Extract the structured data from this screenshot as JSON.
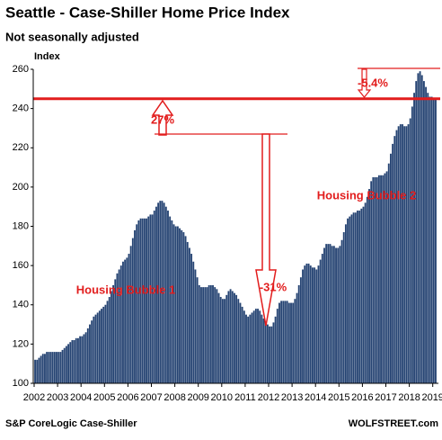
{
  "chart_data": {
    "type": "bar",
    "title": "Seattle - Case-Shiller Home Price Index",
    "subtitle": "Not seasonally adjusted",
    "y_label": "Index",
    "source": "S&P CoreLogic Case-Shiller",
    "credit": "WOLFSTREET.com",
    "color": "#264473",
    "reference_line": 245,
    "reference_color": "#e21d1d",
    "annotations": [
      "27%",
      "-31%",
      "-5.4%",
      "Housing Bubble 1",
      "Housing Bubble 2"
    ],
    "categories": [
      "2002",
      null,
      null,
      null,
      null,
      null,
      null,
      null,
      null,
      null,
      null,
      null,
      "2003",
      null,
      null,
      null,
      null,
      null,
      null,
      null,
      null,
      null,
      null,
      null,
      "2004",
      null,
      null,
      null,
      null,
      null,
      null,
      null,
      null,
      null,
      null,
      null,
      "2005",
      null,
      null,
      null,
      null,
      null,
      null,
      null,
      null,
      null,
      null,
      null,
      "2006",
      null,
      null,
      null,
      null,
      null,
      null,
      null,
      null,
      null,
      null,
      null,
      "2007",
      null,
      null,
      null,
      null,
      null,
      null,
      null,
      null,
      null,
      null,
      null,
      "2008",
      null,
      null,
      null,
      null,
      null,
      null,
      null,
      null,
      null,
      null,
      null,
      "2009",
      null,
      null,
      null,
      null,
      null,
      null,
      null,
      null,
      null,
      null,
      null,
      "2010",
      null,
      null,
      null,
      null,
      null,
      null,
      null,
      null,
      null,
      null,
      null,
      "2011",
      null,
      null,
      null,
      null,
      null,
      null,
      null,
      null,
      null,
      null,
      null,
      "2012",
      null,
      null,
      null,
      null,
      null,
      null,
      null,
      null,
      null,
      null,
      null,
      "2013",
      null,
      null,
      null,
      null,
      null,
      null,
      null,
      null,
      null,
      null,
      null,
      "2014",
      null,
      null,
      null,
      null,
      null,
      null,
      null,
      null,
      null,
      null,
      null,
      "2015",
      null,
      null,
      null,
      null,
      null,
      null,
      null,
      null,
      null,
      null,
      null,
      "2016",
      null,
      null,
      null,
      null,
      null,
      null,
      null,
      null,
      null,
      null,
      null,
      "2017",
      null,
      null,
      null,
      null,
      null,
      null,
      null,
      null,
      null,
      null,
      null,
      "2018",
      null,
      null,
      null,
      null,
      null,
      null,
      null,
      null,
      null,
      null,
      null,
      "2019",
      null
    ],
    "values": [
      112,
      112,
      113,
      114,
      115,
      115,
      116,
      116,
      116,
      116,
      116,
      116,
      116,
      116,
      117,
      118,
      119,
      120,
      121,
      122,
      122,
      123,
      123,
      124,
      124,
      125,
      126,
      128,
      130,
      132,
      134,
      135,
      136,
      137,
      138,
      139,
      140,
      142,
      144,
      147,
      150,
      153,
      156,
      158,
      160,
      162,
      163,
      164,
      166,
      170,
      174,
      178,
      181,
      183,
      184,
      184,
      184,
      184,
      185,
      186,
      186,
      188,
      190,
      192,
      193,
      193,
      192,
      190,
      188,
      185,
      183,
      181,
      180,
      180,
      179,
      178,
      177,
      175,
      172,
      169,
      166,
      162,
      158,
      154,
      150,
      149,
      149,
      149,
      149,
      150,
      150,
      150,
      149,
      148,
      146,
      144,
      143,
      143,
      145,
      147,
      148,
      147,
      146,
      145,
      143,
      141,
      139,
      137,
      135,
      134,
      135,
      136,
      137,
      138,
      138,
      137,
      135,
      133,
      131,
      130,
      129,
      129,
      131,
      134,
      138,
      141,
      142,
      142,
      142,
      142,
      141,
      141,
      141,
      143,
      146,
      150,
      154,
      158,
      160,
      161,
      161,
      160,
      159,
      159,
      158,
      160,
      163,
      166,
      169,
      171,
      171,
      171,
      170,
      170,
      169,
      169,
      170,
      173,
      177,
      181,
      184,
      185,
      186,
      187,
      187,
      188,
      188,
      189,
      190,
      192,
      195,
      199,
      203,
      205,
      205,
      205,
      206,
      206,
      206,
      207,
      208,
      212,
      217,
      222,
      226,
      229,
      231,
      232,
      232,
      231,
      231,
      232,
      235,
      241,
      248,
      254,
      258,
      259,
      257,
      254,
      251,
      248,
      246,
      246,
      245,
      245
    ],
    "ylim": [
      100,
      260
    ],
    "yticks": [
      100,
      120,
      140,
      160,
      180,
      200,
      220,
      240,
      260
    ]
  }
}
